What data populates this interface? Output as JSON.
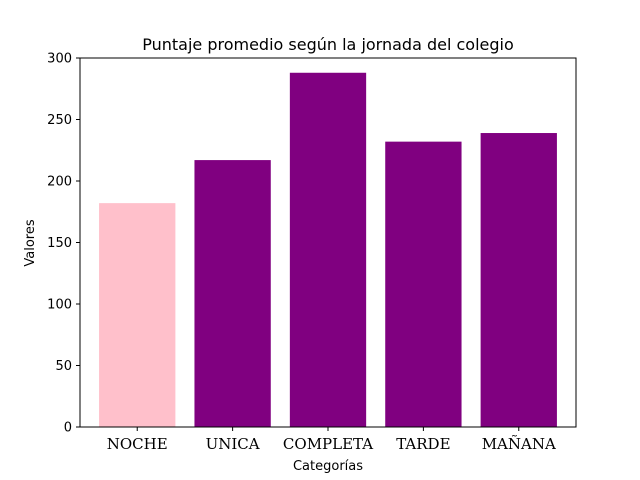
{
  "chart_data": {
    "type": "bar",
    "title": "Puntaje promedio según la jornada del colegio",
    "xlabel": "Categorías",
    "ylabel": "Valores",
    "categories": [
      "NOCHE",
      "UNICA",
      "COMPLETA",
      "TARDE",
      "MAÑANA"
    ],
    "values": [
      182,
      217,
      288,
      232,
      239
    ],
    "colors": [
      "#ffc0cb",
      "#800080",
      "#800080",
      "#800080",
      "#800080"
    ],
    "ylim": [
      0,
      300
    ],
    "yticks": [
      "0",
      "50",
      "100",
      "150",
      "200",
      "250",
      "300"
    ],
    "grid": false,
    "legend": "none"
  }
}
